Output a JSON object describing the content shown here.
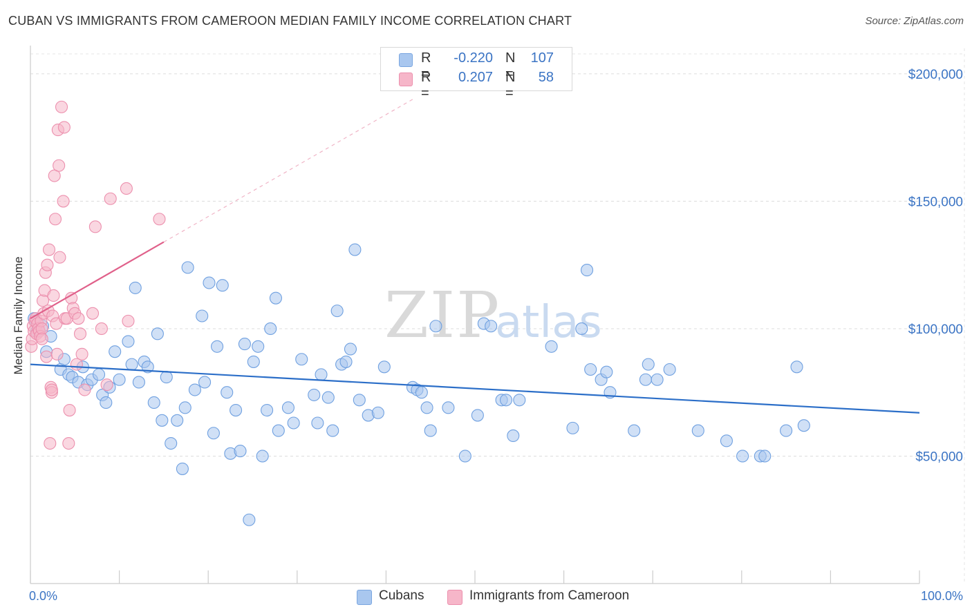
{
  "header": {
    "title": "CUBAN VS IMMIGRANTS FROM CAMEROON MEDIAN FAMILY INCOME CORRELATION CHART",
    "source": "Source: ZipAtlas.com"
  },
  "watermark": {
    "zip": "ZIP",
    "atlas": "atlas"
  },
  "legend": {
    "rows": [
      {
        "r_label": "R =",
        "r_value": "-0.220",
        "n_label": "N =",
        "n_value": "107",
        "color": "#a9c7ef"
      },
      {
        "r_label": "R =",
        "r_value": "0.207",
        "n_label": "N =",
        "n_value": "58",
        "color": "#f6b6c9"
      }
    ]
  },
  "bottom_legend": [
    {
      "label": "Cubans",
      "color": "#a9c7ef"
    },
    {
      "label": "Immigrants from Cameroon",
      "color": "#f6b6c9"
    }
  ],
  "chart_data": {
    "type": "scatter",
    "title": "CUBAN VS IMMIGRANTS FROM CAMEROON MEDIAN FAMILY INCOME CORRELATION CHART",
    "xlabel": "",
    "ylabel": "Median Family Income",
    "xlim": [
      0,
      100
    ],
    "ylim": [
      0,
      210000
    ],
    "x_tick_labels": [
      "0.0%",
      "100.0%"
    ],
    "y_ticks": [
      50000,
      100000,
      150000,
      200000
    ],
    "y_tick_labels": [
      "$50,000",
      "$100,000",
      "$150,000",
      "$200,000"
    ],
    "grid": true,
    "series": [
      {
        "name": "Cubans",
        "color": "#6fa0e0",
        "fill": "#a9c7ef",
        "trend": {
          "x0": 0,
          "y0": 86000,
          "x1": 100,
          "y1": 67000,
          "color": "#2b6ec8"
        },
        "points": [
          [
            0.4,
            104000
          ],
          [
            0.7,
            99000
          ],
          [
            1.4,
            101000
          ],
          [
            1.8,
            91000
          ],
          [
            2.3,
            97000
          ],
          [
            3.4,
            84000
          ],
          [
            3.8,
            88000
          ],
          [
            4.3,
            82000
          ],
          [
            4.7,
            81000
          ],
          [
            5.4,
            79000
          ],
          [
            5.9,
            85000
          ],
          [
            6.4,
            78000
          ],
          [
            6.9,
            80000
          ],
          [
            7.7,
            82000
          ],
          [
            8.1,
            74000
          ],
          [
            8.5,
            71000
          ],
          [
            8.9,
            77000
          ],
          [
            9.5,
            91000
          ],
          [
            10.0,
            80000
          ],
          [
            11.0,
            95000
          ],
          [
            11.4,
            86000
          ],
          [
            11.8,
            116000
          ],
          [
            12.2,
            79000
          ],
          [
            12.8,
            87000
          ],
          [
            13.2,
            85000
          ],
          [
            13.9,
            71000
          ],
          [
            14.3,
            98000
          ],
          [
            14.8,
            64000
          ],
          [
            15.3,
            81000
          ],
          [
            15.8,
            55000
          ],
          [
            16.5,
            64000
          ],
          [
            17.1,
            45000
          ],
          [
            17.4,
            69000
          ],
          [
            17.7,
            124000
          ],
          [
            18.5,
            76000
          ],
          [
            19.3,
            105000
          ],
          [
            19.6,
            79000
          ],
          [
            20.1,
            118000
          ],
          [
            20.6,
            59000
          ],
          [
            21.0,
            93000
          ],
          [
            21.6,
            117000
          ],
          [
            22.1,
            75000
          ],
          [
            22.5,
            51000
          ],
          [
            23.1,
            68000
          ],
          [
            23.6,
            52000
          ],
          [
            24.1,
            94000
          ],
          [
            24.6,
            25000
          ],
          [
            25.1,
            87000
          ],
          [
            25.6,
            93000
          ],
          [
            26.1,
            50000
          ],
          [
            26.6,
            68000
          ],
          [
            27.0,
            100000
          ],
          [
            27.6,
            112000
          ],
          [
            27.9,
            60000
          ],
          [
            29.0,
            69000
          ],
          [
            29.6,
            63000
          ],
          [
            30.5,
            88000
          ],
          [
            31.9,
            74000
          ],
          [
            32.3,
            63000
          ],
          [
            32.7,
            82000
          ],
          [
            33.5,
            73000
          ],
          [
            34.0,
            60000
          ],
          [
            34.5,
            107000
          ],
          [
            35.0,
            86000
          ],
          [
            35.5,
            87000
          ],
          [
            36.0,
            92000
          ],
          [
            36.5,
            131000
          ],
          [
            37.0,
            72000
          ],
          [
            38.0,
            66000
          ],
          [
            39.1,
            67000
          ],
          [
            39.8,
            85000
          ],
          [
            43.0,
            77000
          ],
          [
            43.5,
            76000
          ],
          [
            44.0,
            75000
          ],
          [
            44.6,
            69000
          ],
          [
            45.0,
            60000
          ],
          [
            45.6,
            101000
          ],
          [
            47.0,
            69000
          ],
          [
            48.9,
            50000
          ],
          [
            50.3,
            66000
          ],
          [
            51.0,
            102000
          ],
          [
            51.8,
            101000
          ],
          [
            53.0,
            72000
          ],
          [
            53.5,
            72000
          ],
          [
            54.3,
            58000
          ],
          [
            55.0,
            72000
          ],
          [
            58.6,
            93000
          ],
          [
            61.0,
            61000
          ],
          [
            62.0,
            100000
          ],
          [
            62.6,
            123000
          ],
          [
            63.0,
            84000
          ],
          [
            64.2,
            80000
          ],
          [
            64.8,
            83000
          ],
          [
            65.2,
            75000
          ],
          [
            67.9,
            60000
          ],
          [
            69.2,
            80000
          ],
          [
            69.5,
            86000
          ],
          [
            70.5,
            80000
          ],
          [
            71.9,
            84000
          ],
          [
            75.1,
            60000
          ],
          [
            78.3,
            56000
          ],
          [
            80.1,
            50000
          ],
          [
            82.1,
            50000
          ],
          [
            82.6,
            50000
          ],
          [
            85.0,
            60000
          ],
          [
            86.2,
            85000
          ],
          [
            87.0,
            62000
          ]
        ]
      },
      {
        "name": "Immigrants from Cameroon",
        "color": "#ec8fad",
        "fill": "#f6b6c9",
        "trend": {
          "x0": 0,
          "y0": 104000,
          "x1": 15,
          "y1": 134000,
          "color": "#e0608a",
          "dashed_to": {
            "x1": 43,
            "y1": 190000
          }
        },
        "points": [
          [
            0.1,
            93000
          ],
          [
            0.2,
            96000
          ],
          [
            0.3,
            101000
          ],
          [
            0.4,
            99000
          ],
          [
            0.5,
            103000
          ],
          [
            0.6,
            104000
          ],
          [
            0.7,
            98000
          ],
          [
            0.8,
            102000
          ],
          [
            0.9,
            100000
          ],
          [
            1.0,
            99000
          ],
          [
            1.1,
            97000
          ],
          [
            1.2,
            103000
          ],
          [
            1.3,
            100000
          ],
          [
            1.3,
            96000
          ],
          [
            1.4,
            111000
          ],
          [
            1.5,
            106000
          ],
          [
            1.6,
            115000
          ],
          [
            1.7,
            122000
          ],
          [
            1.8,
            89000
          ],
          [
            1.9,
            125000
          ],
          [
            2.0,
            107000
          ],
          [
            2.1,
            131000
          ],
          [
            2.2,
            55000
          ],
          [
            2.3,
            77000
          ],
          [
            2.4,
            75000
          ],
          [
            2.4,
            76000
          ],
          [
            2.5,
            105000
          ],
          [
            2.6,
            113000
          ],
          [
            2.7,
            160000
          ],
          [
            2.8,
            143000
          ],
          [
            2.9,
            102000
          ],
          [
            3.0,
            90000
          ],
          [
            3.1,
            178000
          ],
          [
            3.2,
            164000
          ],
          [
            3.3,
            128000
          ],
          [
            3.5,
            187000
          ],
          [
            3.7,
            150000
          ],
          [
            3.8,
            179000
          ],
          [
            3.9,
            104000
          ],
          [
            4.1,
            104000
          ],
          [
            4.3,
            55000
          ],
          [
            4.4,
            68000
          ],
          [
            4.6,
            112000
          ],
          [
            4.8,
            108000
          ],
          [
            5.0,
            106000
          ],
          [
            5.2,
            86000
          ],
          [
            5.4,
            104000
          ],
          [
            5.6,
            98000
          ],
          [
            5.8,
            90000
          ],
          [
            6.1,
            76000
          ],
          [
            7.0,
            106000
          ],
          [
            7.3,
            140000
          ],
          [
            8.0,
            100000
          ],
          [
            8.6,
            78000
          ],
          [
            9.0,
            151000
          ],
          [
            10.8,
            155000
          ],
          [
            11.0,
            103000
          ],
          [
            14.5,
            143000
          ]
        ]
      }
    ]
  }
}
